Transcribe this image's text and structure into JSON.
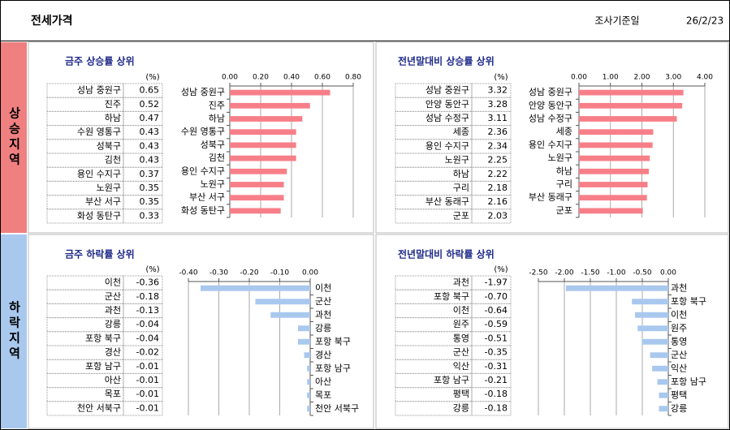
{
  "header": {
    "title": "전세가격",
    "date_label": "조사기준일",
    "date": "26/2/23"
  },
  "sections": [
    {
      "label": "상승지역",
      "color": "#f08080"
    },
    {
      "label": "하락지역",
      "color": "#a9c8ee"
    }
  ],
  "panels": [
    {
      "type": "bar",
      "title": "금주 상승률 상위",
      "unit": "(%)",
      "color": "#f77f88",
      "categories": [
        "성남 중원구",
        "진주",
        "하남",
        "수원 영통구",
        "성북구",
        "김천",
        "용인 수지구",
        "노원구",
        "부산 서구",
        "화성 동탄구"
      ],
      "values": [
        0.65,
        0.52,
        0.47,
        0.43,
        0.43,
        0.43,
        0.37,
        0.35,
        0.35,
        0.33
      ],
      "value_labels": [
        "0.65",
        "0.52",
        "0.47",
        "0.43",
        "0.43",
        "0.43",
        "0.37",
        "0.35",
        "0.35",
        "0.33"
      ],
      "xlim": [
        0,
        0.8
      ],
      "xticks": [
        {
          "value": 0,
          "label": "0.00"
        },
        {
          "value": 0.2,
          "label": "0.20"
        },
        {
          "value": 0.4,
          "label": "0.40"
        },
        {
          "value": 0.6,
          "label": "0.60"
        },
        {
          "value": 0.8,
          "label": "0.80"
        }
      ]
    },
    {
      "type": "bar",
      "title": "전년말대비 상승률 상위",
      "unit": "(%)",
      "color": "#f77f88",
      "categories": [
        "성남 중원구",
        "안양 동안구",
        "성남 수정구",
        "세종",
        "용인 수지구",
        "노원구",
        "하남",
        "구리",
        "부산 동래구",
        "군포"
      ],
      "values": [
        3.32,
        3.28,
        3.11,
        2.36,
        2.34,
        2.25,
        2.22,
        2.18,
        2.16,
        2.03
      ],
      "value_labels": [
        "3.32",
        "3.28",
        "3.11",
        "2.36",
        "2.34",
        "2.25",
        "2.22",
        "2.18",
        "2.16",
        "2.03"
      ],
      "xlim": [
        0,
        4
      ],
      "xticks": [
        {
          "value": 0,
          "label": "0.00"
        },
        {
          "value": 1,
          "label": "1.00"
        },
        {
          "value": 2,
          "label": "2.00"
        },
        {
          "value": 3,
          "label": "3.00"
        },
        {
          "value": 4,
          "label": "4.00"
        }
      ]
    },
    {
      "type": "bar",
      "title": "금주 하락률 상위",
      "unit": "(%)",
      "color": "#a9c8ee",
      "categories": [
        "이천",
        "군산",
        "과천",
        "강릉",
        "포항 북구",
        "경산",
        "포항 남구",
        "아산",
        "목포",
        "천안 서북구"
      ],
      "values": [
        -0.36,
        -0.18,
        -0.13,
        -0.04,
        -0.04,
        -0.02,
        -0.01,
        -0.01,
        -0.01,
        -0.01
      ],
      "value_labels": [
        "-0.36",
        "-0.18",
        "-0.13",
        "-0.04",
        "-0.04",
        "-0.02",
        "-0.01",
        "-0.01",
        "-0.01",
        "-0.01"
      ],
      "xlim": [
        -0.4,
        0
      ],
      "xticks": [
        {
          "value": -0.4,
          "label": "-0.40"
        },
        {
          "value": -0.3,
          "label": "-0.30"
        },
        {
          "value": -0.2,
          "label": "-0.20"
        },
        {
          "value": -0.1,
          "label": "-0.10"
        },
        {
          "value": 0,
          "label": "0.00"
        }
      ]
    },
    {
      "type": "bar",
      "title": "전년말대비 하락률 상위",
      "unit": "(%)",
      "color": "#a9c8ee",
      "categories": [
        "과천",
        "포항 북구",
        "이천",
        "원주",
        "통영",
        "군산",
        "익산",
        "포항 남구",
        "평택",
        "강릉"
      ],
      "values": [
        -1.97,
        -0.7,
        -0.64,
        -0.59,
        -0.51,
        -0.35,
        -0.31,
        -0.21,
        -0.18,
        -0.18
      ],
      "value_labels": [
        "-1.97",
        "-0.70",
        "-0.64",
        "-0.59",
        "-0.51",
        "-0.35",
        "-0.31",
        "-0.21",
        "-0.18",
        "-0.18"
      ],
      "xlim": [
        -2.5,
        0
      ],
      "xticks": [
        {
          "value": -2.5,
          "label": "-2.50"
        },
        {
          "value": -2,
          "label": "-2.00"
        },
        {
          "value": -1.5,
          "label": "-1.50"
        },
        {
          "value": -1,
          "label": "-1.00"
        },
        {
          "value": -0.5,
          "label": "-0.50"
        },
        {
          "value": 0,
          "label": "0.00"
        }
      ]
    }
  ]
}
